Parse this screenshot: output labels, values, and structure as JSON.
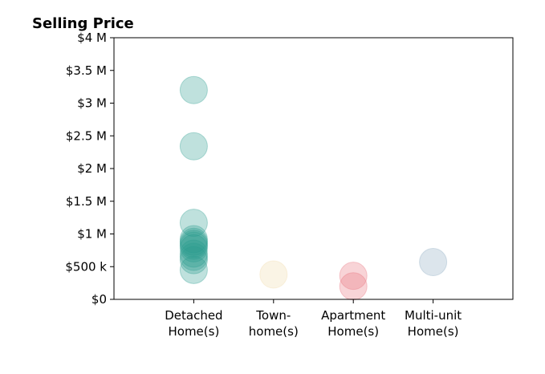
{
  "chart_data": {
    "type": "scatter",
    "title": "Selling Price",
    "xlabel": "",
    "ylabel": "",
    "ylim": [
      0,
      4000000
    ],
    "yticks": [
      {
        "value": 0,
        "label": "$0"
      },
      {
        "value": 500000,
        "label": "$500 k"
      },
      {
        "value": 1000000,
        "label": "$1 M"
      },
      {
        "value": 1500000,
        "label": "$1.5 M"
      },
      {
        "value": 2000000,
        "label": "$2 M"
      },
      {
        "value": 2500000,
        "label": "$2.5 M"
      },
      {
        "value": 3000000,
        "label": "$3 M"
      },
      {
        "value": 3500000,
        "label": "$3.5 M"
      },
      {
        "value": 4000000,
        "label": "$4 M"
      }
    ],
    "categories": [
      {
        "key": "detached",
        "label_lines": [
          "Detached",
          "Home(s)"
        ]
      },
      {
        "key": "town",
        "label_lines": [
          "Town-",
          "home(s)"
        ]
      },
      {
        "key": "apartment",
        "label_lines": [
          "Apartment",
          "Home(s)"
        ]
      },
      {
        "key": "multi",
        "label_lines": [
          "Multi-unit",
          "Home(s)"
        ]
      }
    ],
    "grid": false,
    "legend": "none",
    "series": [
      {
        "category": "detached",
        "color": "#2a9d8f",
        "values": [
          3200000,
          2340000,
          1170000,
          920000,
          880000,
          850000,
          820000,
          780000,
          700000,
          650000,
          600000,
          450000
        ]
      },
      {
        "category": "town",
        "color": "#f0d9a8",
        "values": [
          380000
        ]
      },
      {
        "category": "apartment",
        "color": "#e76f7a",
        "values": [
          360000,
          200000
        ]
      },
      {
        "category": "multi",
        "color": "#8aa9c1",
        "values": [
          570000
        ]
      }
    ]
  }
}
